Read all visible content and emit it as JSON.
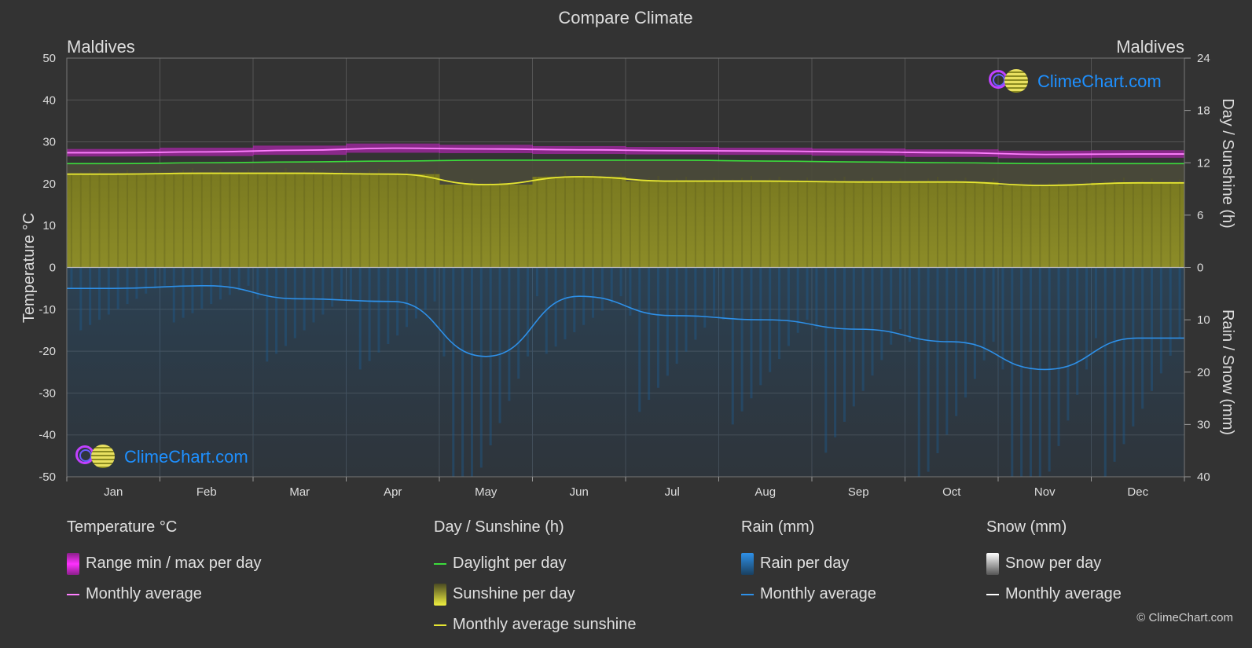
{
  "title": "Compare Climate",
  "left_location": "Maldives",
  "right_location": "Maldives",
  "brand": "ClimeChart.com",
  "copyright": "© ClimeChart.com",
  "colors": {
    "background": "#333333",
    "temp_range": "#d020d0",
    "temp_avg": "#ff80ff",
    "daylight": "#3cdc3c",
    "sunshine_fill": "#b4b432",
    "sunshine_avg": "#e6e632",
    "rain_fill": "#1e6eb4",
    "rain_avg": "#2e90e8",
    "snow_avg": "#ffffff",
    "brand": "#1e90ff"
  },
  "chart_data": {
    "type": "area",
    "title": "Compare Climate",
    "x": [
      "Jan",
      "Feb",
      "Mar",
      "Apr",
      "May",
      "Jun",
      "Jul",
      "Aug",
      "Sep",
      "Oct",
      "Nov",
      "Dec"
    ],
    "axes": {
      "left": {
        "label": "Temperature °C",
        "range": [
          -50,
          50
        ],
        "ticks": [
          "50",
          "40",
          "30",
          "20",
          "10",
          "0",
          "-10",
          "-20",
          "-30",
          "-40",
          "-50"
        ]
      },
      "right_top": {
        "label": "Day / Sunshine (h)",
        "range": [
          0,
          24
        ],
        "ticks": [
          "24",
          "18",
          "12",
          "6",
          "0"
        ]
      },
      "right_bottom": {
        "label": "Rain / Snow (mm)",
        "range": [
          0,
          40
        ],
        "ticks": [
          "10",
          "20",
          "30",
          "40"
        ]
      }
    },
    "grid": true,
    "series": [
      {
        "name": "Range min / max per day",
        "unit": "°C",
        "min": [
          26.5,
          26.6,
          26.9,
          27.4,
          27.3,
          27.1,
          27.0,
          26.9,
          26.7,
          26.4,
          26.1,
          26.2
        ],
        "max": [
          28.3,
          28.6,
          29.1,
          29.6,
          29.3,
          29.0,
          28.8,
          28.6,
          28.4,
          28.2,
          27.9,
          28.0
        ]
      },
      {
        "name": "Monthly average",
        "group": "Temperature °C",
        "unit": "°C",
        "values": [
          27.4,
          27.6,
          28.0,
          28.5,
          28.3,
          28.1,
          27.9,
          27.8,
          27.6,
          27.4,
          27.0,
          27.1
        ]
      },
      {
        "name": "Daylight per day",
        "unit": "h",
        "values": [
          11.9,
          12.0,
          12.1,
          12.2,
          12.3,
          12.3,
          12.3,
          12.2,
          12.1,
          12.0,
          11.9,
          11.9
        ]
      },
      {
        "name": "Sunshine per day",
        "unit": "h",
        "values": [
          10.7,
          10.8,
          10.8,
          10.7,
          9.5,
          10.4,
          9.9,
          9.9,
          9.8,
          9.8,
          9.4,
          9.7
        ]
      },
      {
        "name": "Monthly average sunshine",
        "unit": "h",
        "values": [
          10.7,
          10.8,
          10.8,
          10.7,
          9.5,
          10.4,
          9.9,
          9.9,
          9.8,
          9.8,
          9.4,
          9.7
        ]
      },
      {
        "name": "Rain per day",
        "unit": "mm",
        "values": [
          4.0,
          3.5,
          6.0,
          6.5,
          17.0,
          5.5,
          9.2,
          10.0,
          11.8,
          14.2,
          19.5,
          13.5
        ]
      },
      {
        "name": "Monthly average",
        "group": "Rain (mm)",
        "unit": "mm",
        "values": [
          4.0,
          3.5,
          6.0,
          6.5,
          17.0,
          5.5,
          9.2,
          10.0,
          11.8,
          14.2,
          19.5,
          13.5
        ]
      },
      {
        "name": "Snow per day",
        "unit": "mm",
        "values": [
          0,
          0,
          0,
          0,
          0,
          0,
          0,
          0,
          0,
          0,
          0,
          0
        ]
      },
      {
        "name": "Monthly average",
        "group": "Snow (mm)",
        "unit": "mm",
        "values": [
          0,
          0,
          0,
          0,
          0,
          0,
          0,
          0,
          0,
          0,
          0,
          0
        ]
      }
    ]
  },
  "legend": {
    "temperature": {
      "heading": "Temperature °C",
      "items": [
        "Range min / max per day",
        "Monthly average"
      ]
    },
    "sunshine": {
      "heading": "Day / Sunshine (h)",
      "items": [
        "Daylight per day",
        "Sunshine per day",
        "Monthly average sunshine"
      ]
    },
    "rain": {
      "heading": "Rain (mm)",
      "items": [
        "Rain per day",
        "Monthly average"
      ]
    },
    "snow": {
      "heading": "Snow (mm)",
      "items": [
        "Snow per day",
        "Monthly average"
      ]
    }
  }
}
